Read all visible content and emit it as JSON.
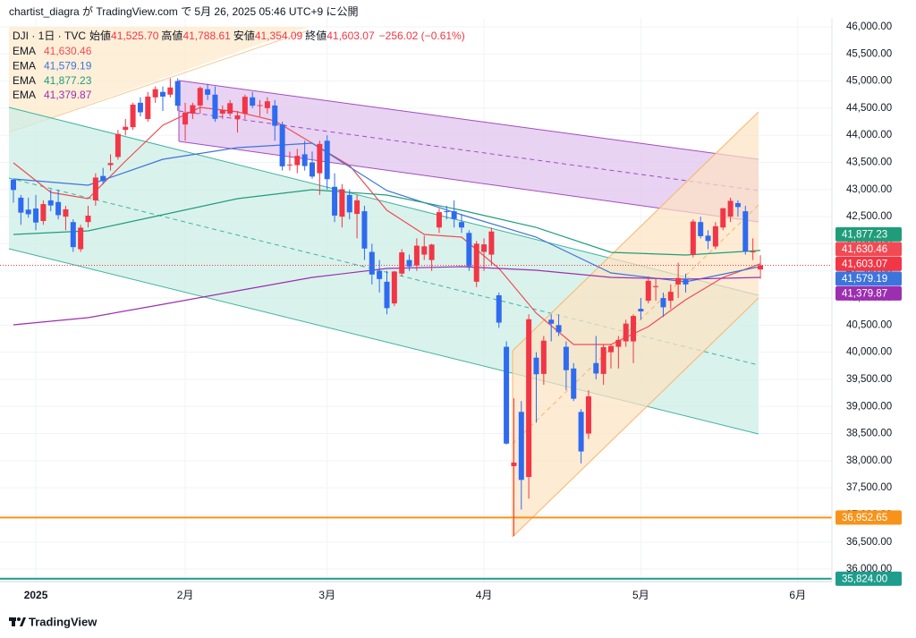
{
  "chart_data": {
    "type": "candlestick",
    "credit": "chartist_diagra が TradingView.com で 5月 26, 2025 05:46 UTC+9 に公開",
    "brand": "TradingView",
    "header": {
      "symbol": "DJI · 1日 · TVC",
      "open_label": "始値",
      "open_value": "41,525.70",
      "high_label": "高値",
      "high_value": "41,788.61",
      "low_label": "安値",
      "low_value": "41,354.09",
      "close_label": "終値",
      "close_value": "41,603.07",
      "change": "−256.02 (−0.61%)"
    },
    "categories": [
      null,
      null,
      null,
      "2025",
      null,
      null,
      null,
      null,
      null,
      null,
      null,
      null,
      null,
      null,
      null,
      null,
      null,
      null,
      null,
      null,
      null,
      null,
      null,
      "2月",
      null,
      null,
      null,
      null,
      null,
      null,
      null,
      null,
      null,
      null,
      null,
      null,
      null,
      null,
      null,
      null,
      null,
      null,
      "3月",
      null,
      null,
      null,
      null,
      null,
      null,
      null,
      null,
      null,
      null,
      null,
      null,
      null,
      null,
      null,
      null,
      null,
      null,
      null,
      null,
      "4月",
      null,
      null,
      null,
      null,
      null,
      null,
      null,
      null,
      null,
      null,
      null,
      null,
      null,
      null,
      null,
      null,
      null,
      null,
      null,
      null,
      "5月",
      null,
      null,
      null,
      null,
      null,
      null,
      null,
      null,
      null,
      null,
      null,
      null,
      null,
      null,
      null,
      null,
      null,
      null,
      null,
      null,
      "6月"
    ],
    "open": [
      43180,
      42850,
      42630,
      42650,
      42420,
      42800,
      42770,
      42500,
      42400,
      41900,
      42400,
      42800,
      43250,
      43450,
      43600,
      44100,
      44150,
      44600,
      44300,
      44700,
      44800,
      44750,
      45000,
      44200,
      44400,
      44550,
      44850,
      44750,
      44400,
      44400,
      44300,
      44400,
      44700,
      44550,
      44500,
      44550,
      44200,
      43450,
      43450,
      43650,
      43500,
      43300,
      43900,
      43050,
      42500,
      42900,
      42550,
      42600,
      41850,
      41500,
      41300,
      40900,
      41450,
      41700,
      41600,
      41800,
      41700,
      42300,
      42600,
      42600,
      42400,
      42200,
      41300,
      41850,
      41800,
      41050,
      40100,
      37900,
      38900,
      37700,
      39900,
      39600,
      40600,
      40500,
      40100,
      39700,
      38900,
      38500,
      39800,
      39600,
      40000,
      40100,
      40200,
      40200,
      40800,
      40950,
      41200,
      41000,
      40950,
      41250,
      41350,
      41800,
      42400,
      42150,
      41950,
      42300,
      42500,
      42750,
      42600,
      41850,
      41525.7,
      null,
      null,
      null,
      null,
      null
    ],
    "high": [
      43196,
      42900,
      42850,
      42900,
      42800,
      43000,
      43000,
      42700,
      42450,
      42350,
      42700,
      43300,
      43400,
      43650,
      44100,
      44300,
      44600,
      44700,
      44800,
      44900,
      44900,
      45050,
      45050,
      44600,
      44600,
      44900,
      44950,
      44900,
      44550,
      44650,
      44450,
      44750,
      44800,
      44650,
      44700,
      44650,
      44250,
      43700,
      43750,
      43900,
      43700,
      43900,
      44000,
      43300,
      43100,
      43000,
      42900,
      42700,
      42000,
      41700,
      41500,
      41500,
      41900,
      41800,
      42100,
      42150,
      42000,
      42650,
      42700,
      42800,
      42550,
      42250,
      42050,
      42100,
      42300,
      41100,
      40200,
      39150,
      39100,
      40700,
      40000,
      40300,
      40700,
      40700,
      40200,
      39800,
      38950,
      39300,
      40300,
      40150,
      40150,
      40300,
      40600,
      40700,
      41000,
      41400,
      41350,
      41100,
      41250,
      41650,
      41450,
      42450,
      42500,
      42250,
      42400,
      42660,
      42850,
      42800,
      42700,
      42100,
      41788.61,
      null,
      null,
      null,
      null,
      null
    ],
    "low": [
      42758,
      42350,
      42480,
      42250,
      42350,
      42600,
      42450,
      42250,
      41850,
      41850,
      42300,
      42700,
      43100,
      43350,
      43550,
      44000,
      44100,
      44350,
      44250,
      44600,
      44450,
      44700,
      44450,
      43900,
      44300,
      44400,
      44650,
      44250,
      44300,
      44350,
      44050,
      44300,
      44500,
      44350,
      44400,
      43900,
      43350,
      43350,
      43300,
      43350,
      43200,
      42900,
      43000,
      42400,
      42300,
      42450,
      42100,
      41700,
      41250,
      41100,
      40700,
      40850,
      41400,
      41500,
      41500,
      41700,
      41500,
      42200,
      42450,
      42300,
      42200,
      41500,
      41200,
      41500,
      41600,
      40450,
      38300,
      36611,
      37100,
      37300,
      38700,
      39400,
      40200,
      40300,
      39300,
      39100,
      37950,
      38400,
      39500,
      39400,
      39700,
      39700,
      40100,
      39800,
      40600,
      40900,
      40950,
      40650,
      40800,
      41000,
      41100,
      41750,
      42100,
      41900,
      41900,
      42250,
      42400,
      42500,
      41800,
      41700,
      41354.09,
      null,
      null,
      null,
      null,
      null
    ],
    "close": [
      42992,
      42574,
      42544,
      42392,
      42732,
      42706,
      42528,
      42635,
      41938,
      42297,
      42518,
      43221,
      43153,
      43488,
      44025,
      44157,
      44565,
      44424,
      44714,
      44850,
      44714,
      44882,
      44545,
      44421,
      44556,
      44873,
      44748,
      44303,
      44470,
      44593,
      44368,
      44711,
      44546,
      44556,
      44627,
      44176,
      43428,
      43461,
      43621,
      43433,
      43239,
      43841,
      43191,
      42520,
      43006,
      42579,
      42801,
      41912,
      41433,
      41350,
      40813,
      41488,
      41841,
      41581,
      41965,
      41953,
      41985,
      42583,
      42587,
      42455,
      42300,
      41584,
      42002,
      41989,
      42226,
      40546,
      38315,
      37966,
      37646,
      40608,
      39594,
      40213,
      40525,
      40369,
      39669,
      39142,
      38170,
      39187,
      39607,
      40093,
      40114,
      40228,
      40528,
      40669,
      40753,
      41317,
      41219,
      40829,
      41114,
      41368,
      41250,
      42410,
      42140,
      42051,
      42323,
      42655,
      42792,
      42677,
      41860,
      41859.09,
      41603.07,
      null,
      null,
      null,
      null,
      null
    ],
    "up_color": "#f23645",
    "down_color": "#2f6bef",
    "series": [
      {
        "name": "EMA",
        "color": "#f04b55",
        "last_value_label": "41,630.46",
        "x": [
          0,
          5,
          10,
          15,
          20,
          25,
          30,
          35,
          40,
          45,
          50,
          55,
          60,
          65,
          70,
          75,
          80,
          85,
          90,
          95,
          100
        ],
        "values": [
          43492,
          42947,
          42832,
          43525,
          44185,
          44515,
          44432,
          44267,
          43855,
          43442,
          42617,
          42172,
          42122,
          41545,
          40720,
          40142,
          40142,
          40472,
          40967,
          41380,
          41630.46
        ]
      },
      {
        "name": "EMA",
        "color": "#3d74dc",
        "last_value_label": "41,579.19",
        "x": [
          0,
          10,
          20,
          30,
          40,
          50,
          60,
          70,
          80,
          90,
          100
        ],
        "values": [
          43195,
          43079,
          43558,
          43772,
          43855,
          42980,
          42535,
          42122,
          41462,
          41297,
          41579.19
        ]
      },
      {
        "name": "EMA",
        "color": "#1f9d7a",
        "last_value_label": "41,877.23",
        "x": [
          0,
          10,
          20,
          30,
          40,
          50,
          60,
          70,
          80,
          90,
          100
        ],
        "values": [
          42172,
          42238,
          42535,
          42832,
          42997,
          42898,
          42617,
          42300,
          41842,
          41792,
          41877.23
        ]
      },
      {
        "name": "EMA",
        "color": "#9c2fb0",
        "last_value_label": "41,379.87",
        "x": [
          0,
          10,
          20,
          30,
          40,
          50,
          60,
          70,
          80,
          90,
          100
        ],
        "values": [
          40505,
          40637,
          40884,
          41133,
          41380,
          41545,
          41578,
          41512,
          41380,
          41347,
          41379.87
        ]
      }
    ],
    "price_lines": [
      {
        "value": 36952.65,
        "label": "36,952.65",
        "color": "#f7931a"
      },
      {
        "value": 35824,
        "label": "35,824.00",
        "color": "#1e9c8c"
      }
    ],
    "ylim": [
      35770,
      46165
    ],
    "yticks": [
      {
        "value": 46000,
        "label": "46,000.00"
      },
      {
        "value": 45500,
        "label": "45,500.00"
      },
      {
        "value": 45000,
        "label": "45,000.00"
      },
      {
        "value": 44500,
        "label": "44,500.00"
      },
      {
        "value": 44000,
        "label": "44,000.00"
      },
      {
        "value": 43500,
        "label": "43,500.00"
      },
      {
        "value": 43000,
        "label": "43,000.00"
      },
      {
        "value": 42500,
        "label": "42,500.00"
      },
      {
        "value": 42000,
        "label": "42,000.00"
      },
      {
        "value": 41500,
        "label": "41,500.00"
      },
      {
        "value": 41000,
        "label": "41,000.00"
      },
      {
        "value": 40500,
        "label": "40,500.00"
      },
      {
        "value": 40000,
        "label": "40,000.00"
      },
      {
        "value": 39500,
        "label": "39,500.00"
      },
      {
        "value": 39000,
        "label": "39,000.00"
      },
      {
        "value": 38500,
        "label": "38,500.00"
      },
      {
        "value": 38000,
        "label": "38,000.00"
      },
      {
        "value": 37500,
        "label": "37,500.00"
      },
      {
        "value": 37000,
        "label": "37,000.00"
      },
      {
        "value": 36500,
        "label": "36,500.00"
      },
      {
        "value": 36000,
        "label": "36,000.00"
      }
    ],
    "grid": true
  }
}
